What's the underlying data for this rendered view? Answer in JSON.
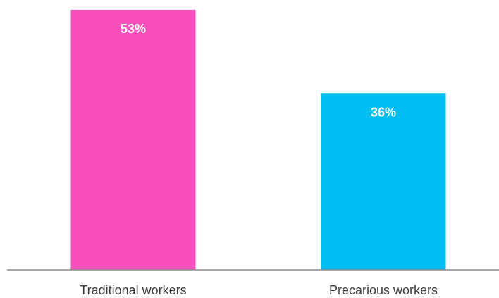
{
  "chart_data": {
    "type": "bar",
    "categories": [
      "Traditional workers",
      "Precarious workers"
    ],
    "values": [
      53,
      36
    ],
    "value_labels": [
      "53%",
      "36%"
    ],
    "colors": [
      "#f74fbb",
      "#00bdf2"
    ],
    "title": "",
    "xlabel": "",
    "ylabel": "",
    "ylim": [
      0,
      55
    ],
    "grid": false,
    "legend": "none"
  }
}
